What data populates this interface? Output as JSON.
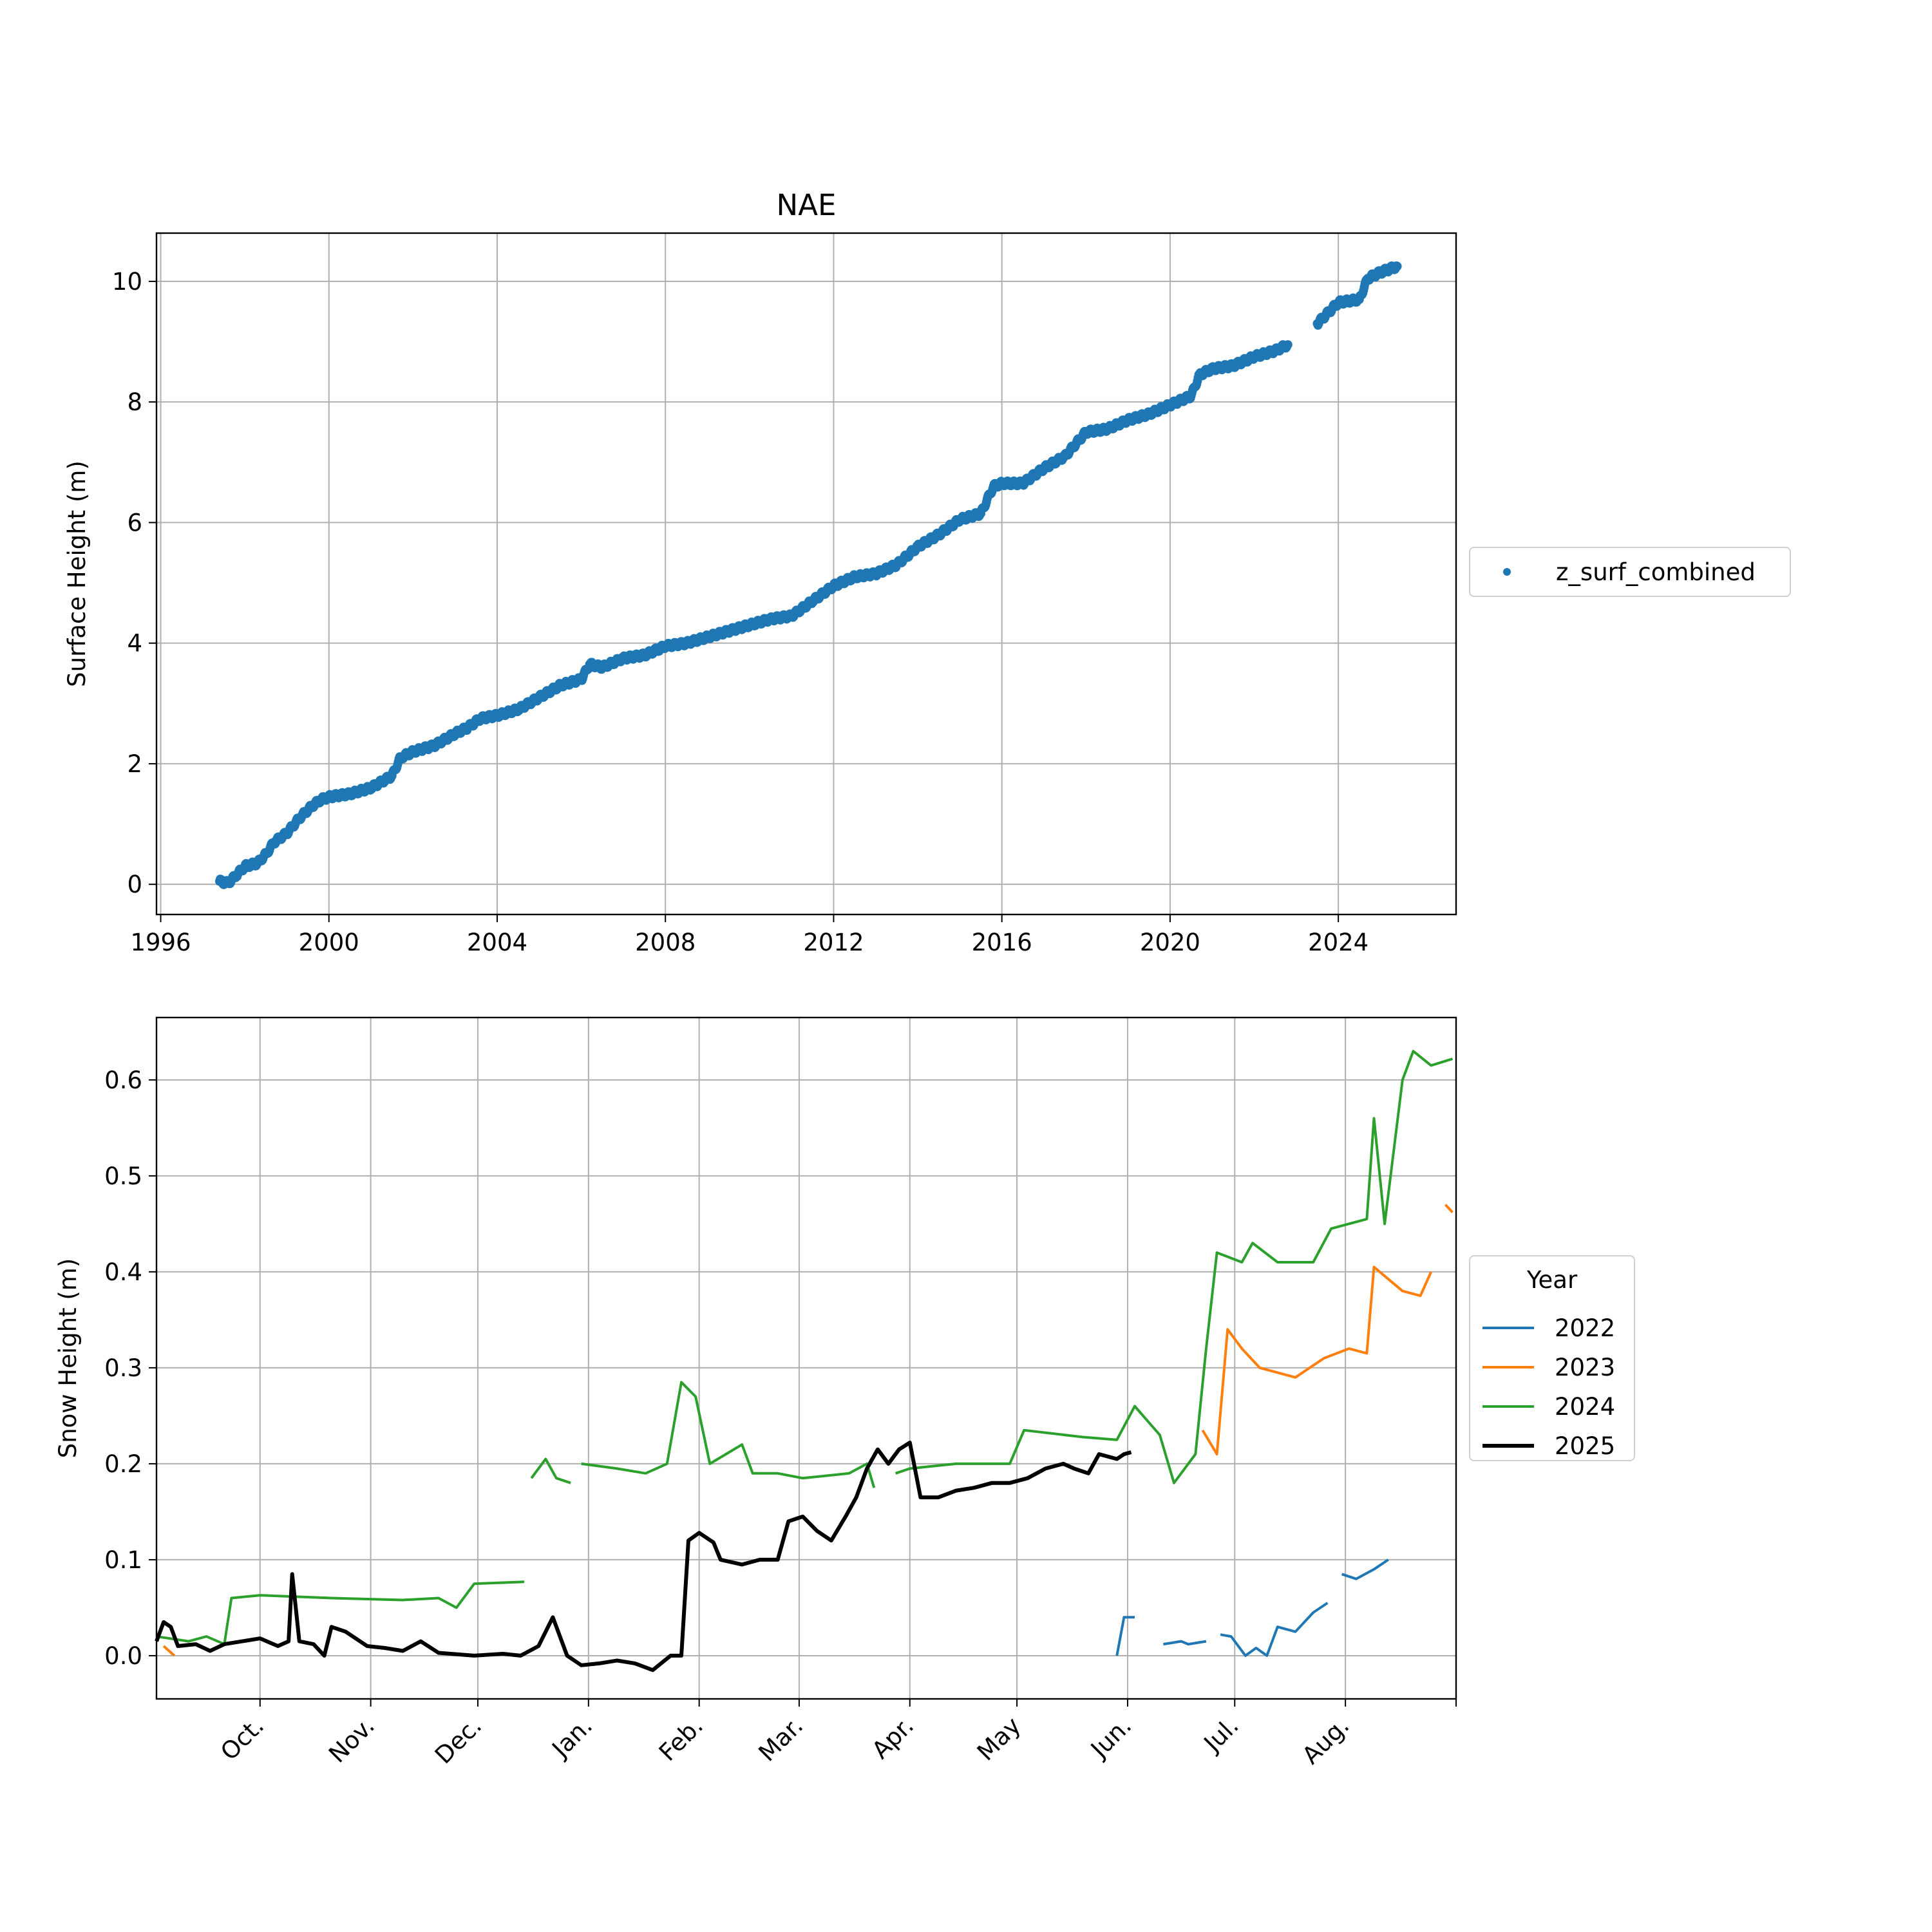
{
  "chart_data": [
    {
      "type": "scatter",
      "title": "NAE",
      "xlabel": "",
      "ylabel": "Surface Height (m)",
      "x_ticks": [
        "1996",
        "2000",
        "2004",
        "2008",
        "2012",
        "2016",
        "2020",
        "2024"
      ],
      "y_ticks": [
        "0",
        "2",
        "4",
        "6",
        "8",
        "10"
      ],
      "xlim": [
        1995.9,
        2026.8
      ],
      "ylim": [
        -0.5,
        10.8
      ],
      "grid": true,
      "legend": {
        "placement": "right-outside",
        "entries": [
          "z_surf_combined"
        ]
      },
      "series": [
        {
          "name": "z_surf_combined",
          "color": "#1f77b4",
          "points": [
            [
              1997.4,
              0.05
            ],
            [
              1997.6,
              0.02
            ],
            [
              1997.8,
              0.15
            ],
            [
              1998.0,
              0.3
            ],
            [
              1998.3,
              0.35
            ],
            [
              1998.5,
              0.5
            ],
            [
              1998.7,
              0.7
            ],
            [
              1999.0,
              0.85
            ],
            [
              1999.3,
              1.1
            ],
            [
              1999.6,
              1.3
            ],
            [
              1999.8,
              1.4
            ],
            [
              2000.0,
              1.45
            ],
            [
              2000.5,
              1.5
            ],
            [
              2001.0,
              1.6
            ],
            [
              2001.5,
              1.8
            ],
            [
              2001.7,
              2.1
            ],
            [
              2002.0,
              2.2
            ],
            [
              2002.5,
              2.3
            ],
            [
              2003.0,
              2.5
            ],
            [
              2003.3,
              2.6
            ],
            [
              2003.6,
              2.75
            ],
            [
              2004.0,
              2.8
            ],
            [
              2004.5,
              2.9
            ],
            [
              2005.0,
              3.1
            ],
            [
              2005.5,
              3.3
            ],
            [
              2006.0,
              3.4
            ],
            [
              2006.2,
              3.65
            ],
            [
              2006.5,
              3.6
            ],
            [
              2007.0,
              3.75
            ],
            [
              2007.5,
              3.8
            ],
            [
              2008.0,
              3.95
            ],
            [
              2008.5,
              4.0
            ],
            [
              2009.0,
              4.1
            ],
            [
              2009.5,
              4.2
            ],
            [
              2010.0,
              4.3
            ],
            [
              2010.5,
              4.4
            ],
            [
              2011.0,
              4.45
            ],
            [
              2011.5,
              4.7
            ],
            [
              2012.0,
              4.95
            ],
            [
              2012.5,
              5.1
            ],
            [
              2013.0,
              5.15
            ],
            [
              2013.5,
              5.3
            ],
            [
              2014.0,
              5.6
            ],
            [
              2014.5,
              5.8
            ],
            [
              2015.0,
              6.05
            ],
            [
              2015.5,
              6.15
            ],
            [
              2015.8,
              6.6
            ],
            [
              2016.0,
              6.65
            ],
            [
              2016.5,
              6.65
            ],
            [
              2017.0,
              6.9
            ],
            [
              2017.5,
              7.1
            ],
            [
              2018.0,
              7.5
            ],
            [
              2018.5,
              7.55
            ],
            [
              2019.0,
              7.7
            ],
            [
              2019.5,
              7.8
            ],
            [
              2020.0,
              7.95
            ],
            [
              2020.5,
              8.1
            ],
            [
              2020.7,
              8.45
            ],
            [
              2021.0,
              8.55
            ],
            [
              2021.5,
              8.6
            ],
            [
              2022.0,
              8.75
            ],
            [
              2022.5,
              8.85
            ],
            [
              2022.8,
              8.95
            ],
            [
              2023.5,
              9.3
            ],
            [
              2024.0,
              9.65
            ],
            [
              2024.5,
              9.7
            ],
            [
              2024.7,
              10.05
            ],
            [
              2025.0,
              10.15
            ],
            [
              2025.4,
              10.25
            ]
          ]
        }
      ]
    },
    {
      "type": "line",
      "title": "",
      "xlabel": "",
      "ylabel": "Snow Height (m)",
      "x_ticks": [
        "Oct.",
        "Nov.",
        "Dec.",
        "Jan.",
        "Feb.",
        "Mar.",
        "Apr.",
        "May",
        "Jun.",
        "Jul.",
        "Aug."
      ],
      "x_tick_days": [
        30,
        61,
        91,
        122,
        153,
        181,
        212,
        242,
        273,
        303,
        334
      ],
      "y_ticks": [
        "0.0",
        "0.1",
        "0.2",
        "0.3",
        "0.4",
        "0.5",
        "0.6"
      ],
      "xlim": [
        1,
        365
      ],
      "ylim": [
        -0.045,
        0.665
      ],
      "grid": true,
      "legend": {
        "placement": "right-outside",
        "title": "Year",
        "entries": [
          "2022",
          "2023",
          "2024",
          "2025"
        ]
      },
      "series": [
        {
          "name": "2022",
          "color": "#1f77b4",
          "segments": [
            [
              [
                270,
                0.0
              ],
              [
                272,
                0.04
              ],
              [
                275,
                0.04
              ]
            ],
            [
              [
                283,
                0.012
              ],
              [
                288,
                0.015
              ],
              [
                290,
                0.012
              ],
              [
                295,
                0.015
              ]
            ],
            [
              [
                299,
                0.022
              ],
              [
                302,
                0.02
              ],
              [
                306,
                0.0
              ],
              [
                309,
                0.008
              ],
              [
                312,
                0.0
              ],
              [
                315,
                0.03
              ],
              [
                320,
                0.025
              ],
              [
                325,
                0.045
              ],
              [
                329,
                0.055
              ]
            ],
            [
              [
                333,
                0.085
              ],
              [
                337,
                0.08
              ],
              [
                342,
                0.09
              ],
              [
                346,
                0.1
              ]
            ]
          ]
        },
        {
          "name": "2023",
          "color": "#ff7f0e",
          "segments": [
            [
              [
                3,
                0.01
              ],
              [
                6,
                0.0
              ]
            ],
            [
              [
                294,
                0.235
              ],
              [
                298,
                0.21
              ],
              [
                301,
                0.34
              ],
              [
                305,
                0.32
              ],
              [
                310,
                0.3
              ],
              [
                320,
                0.29
              ],
              [
                328,
                0.31
              ],
              [
                335,
                0.32
              ],
              [
                340,
                0.315
              ],
              [
                342,
                0.405
              ],
              [
                350,
                0.38
              ],
              [
                355,
                0.375
              ],
              [
                358,
                0.4
              ]
            ],
            [
              [
                362,
                0.47
              ],
              [
                364,
                0.462
              ]
            ]
          ]
        },
        {
          "name": "2024",
          "color": "#2ca02c",
          "segments": [
            [
              [
                1,
                0.02
              ],
              [
                10,
                0.015
              ],
              [
                15,
                0.02
              ],
              [
                20,
                0.012
              ],
              [
                22,
                0.06
              ],
              [
                30,
                0.063
              ],
              [
                50,
                0.06
              ],
              [
                70,
                0.058
              ],
              [
                80,
                0.06
              ],
              [
                85,
                0.05
              ],
              [
                90,
                0.075
              ],
              [
                104,
                0.077
              ]
            ],
            [
              [
                106,
                0.185
              ],
              [
                110,
                0.205
              ],
              [
                113,
                0.185
              ],
              [
                117,
                0.18
              ]
            ],
            [
              [
                120,
                0.2
              ],
              [
                130,
                0.195
              ],
              [
                138,
                0.19
              ],
              [
                144,
                0.2
              ],
              [
                148,
                0.285
              ],
              [
                152,
                0.27
              ],
              [
                156,
                0.2
              ],
              [
                165,
                0.22
              ],
              [
                168,
                0.19
              ],
              [
                175,
                0.19
              ],
              [
                182,
                0.185
              ],
              [
                195,
                0.19
              ],
              [
                200,
                0.2
              ],
              [
                202,
                0.175
              ]
            ],
            [
              [
                208,
                0.19
              ],
              [
                212,
                0.195
              ],
              [
                225,
                0.2
              ],
              [
                240,
                0.2
              ],
              [
                244,
                0.235
              ],
              [
                260,
                0.228
              ],
              [
                270,
                0.225
              ],
              [
                275,
                0.26
              ],
              [
                282,
                0.23
              ],
              [
                286,
                0.18
              ],
              [
                292,
                0.21
              ],
              [
                295,
                0.32
              ],
              [
                298,
                0.42
              ],
              [
                305,
                0.41
              ],
              [
                308,
                0.43
              ],
              [
                315,
                0.41
              ],
              [
                325,
                0.41
              ],
              [
                330,
                0.445
              ],
              [
                340,
                0.455
              ],
              [
                342,
                0.56
              ],
              [
                345,
                0.45
              ],
              [
                350,
                0.6
              ],
              [
                353,
                0.63
              ],
              [
                358,
                0.615
              ],
              [
                364,
                0.622
              ]
            ]
          ]
        },
        {
          "name": "2025",
          "color": "#000000",
          "segments": [
            [
              [
                1,
                0.015
              ],
              [
                3,
                0.035
              ],
              [
                5,
                0.03
              ],
              [
                7,
                0.01
              ],
              [
                12,
                0.012
              ],
              [
                16,
                0.005
              ],
              [
                20,
                0.012
              ],
              [
                25,
                0.015
              ],
              [
                30,
                0.018
              ],
              [
                35,
                0.01
              ],
              [
                38,
                0.015
              ],
              [
                39,
                0.085
              ],
              [
                41,
                0.015
              ],
              [
                45,
                0.012
              ],
              [
                48,
                0.0
              ],
              [
                50,
                0.03
              ],
              [
                54,
                0.025
              ],
              [
                60,
                0.01
              ],
              [
                65,
                0.008
              ],
              [
                70,
                0.005
              ],
              [
                75,
                0.015
              ],
              [
                80,
                0.003
              ],
              [
                90,
                0.0
              ],
              [
                98,
                0.002
              ],
              [
                103,
                0.0
              ],
              [
                108,
                0.01
              ],
              [
                112,
                0.04
              ],
              [
                116,
                0.0
              ],
              [
                120,
                -0.01
              ],
              [
                125,
                -0.008
              ],
              [
                130,
                -0.005
              ],
              [
                135,
                -0.008
              ],
              [
                140,
                -0.015
              ],
              [
                145,
                0.0
              ],
              [
                148,
                0.0
              ],
              [
                150,
                0.12
              ],
              [
                153,
                0.128
              ],
              [
                157,
                0.118
              ],
              [
                159,
                0.1
              ],
              [
                165,
                0.095
              ],
              [
                170,
                0.1
              ],
              [
                175,
                0.1
              ],
              [
                178,
                0.14
              ],
              [
                182,
                0.145
              ],
              [
                186,
                0.13
              ],
              [
                190,
                0.12
              ],
              [
                194,
                0.145
              ],
              [
                197,
                0.165
              ],
              [
                200,
                0.195
              ],
              [
                203,
                0.215
              ],
              [
                206,
                0.2
              ],
              [
                209,
                0.215
              ],
              [
                212,
                0.222
              ],
              [
                215,
                0.165
              ],
              [
                220,
                0.165
              ],
              [
                225,
                0.172
              ],
              [
                230,
                0.175
              ],
              [
                235,
                0.18
              ],
              [
                240,
                0.18
              ],
              [
                245,
                0.185
              ],
              [
                250,
                0.195
              ],
              [
                255,
                0.2
              ],
              [
                258,
                0.195
              ],
              [
                262,
                0.19
              ],
              [
                265,
                0.21
              ],
              [
                270,
                0.205
              ],
              [
                272,
                0.21
              ],
              [
                274,
                0.212
              ]
            ]
          ]
        }
      ]
    }
  ]
}
